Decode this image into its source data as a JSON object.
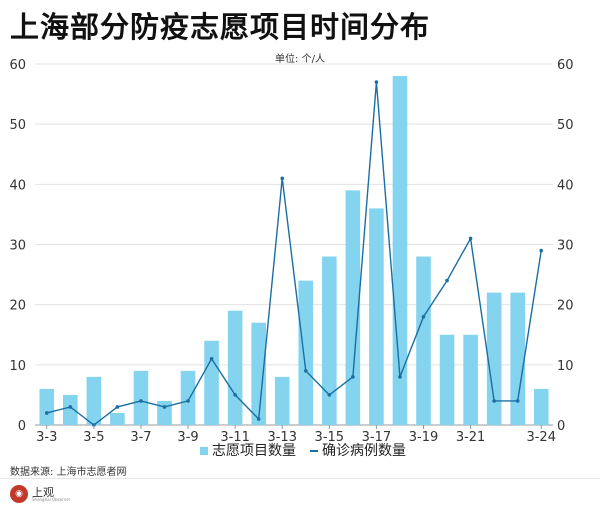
{
  "title": "上海部分防疫志愿项目时间分布",
  "unit": "单位: 个/人",
  "source": "数据来源: 上海市志愿者网",
  "logo": {
    "text": "上观",
    "sub": "Shanghai Observer"
  },
  "colors": {
    "bar": "#85d4ef",
    "line": "#1a6fa0",
    "grid": "#e3e3e3"
  },
  "chart_data": {
    "type": "bar",
    "categories": [
      "3-3",
      "3-4",
      "3-5",
      "3-6",
      "3-7",
      "3-8",
      "3-9",
      "3-10",
      "3-11",
      "3-12",
      "3-13",
      "3-14",
      "3-15",
      "3-16",
      "3-17",
      "3-18",
      "3-19",
      "3-20",
      "3-21",
      "3-22",
      "3-23",
      "3-24"
    ],
    "x_tick_labels": [
      "3-3",
      "3-5",
      "3-7",
      "3-9",
      "3-11",
      "3-13",
      "3-15",
      "3-17",
      "3-19",
      "3-21",
      "3-24"
    ],
    "y_ticks": [
      0,
      10,
      20,
      30,
      40,
      50,
      60
    ],
    "ylim": [
      0,
      60
    ],
    "series": [
      {
        "name": "志愿项目数量",
        "kind": "bar",
        "values": [
          6,
          5,
          8,
          2,
          9,
          4,
          9,
          14,
          19,
          17,
          8,
          24,
          28,
          39,
          36,
          58,
          28,
          15,
          15,
          22,
          22,
          6
        ]
      },
      {
        "name": "确诊病例数量",
        "kind": "line",
        "values": [
          2,
          3,
          0,
          3,
          4,
          3,
          4,
          11,
          5,
          1,
          41,
          9,
          5,
          8,
          57,
          8,
          18,
          24,
          31,
          4,
          4,
          29
        ]
      }
    ],
    "legend_position": "bottom",
    "grid": true
  }
}
